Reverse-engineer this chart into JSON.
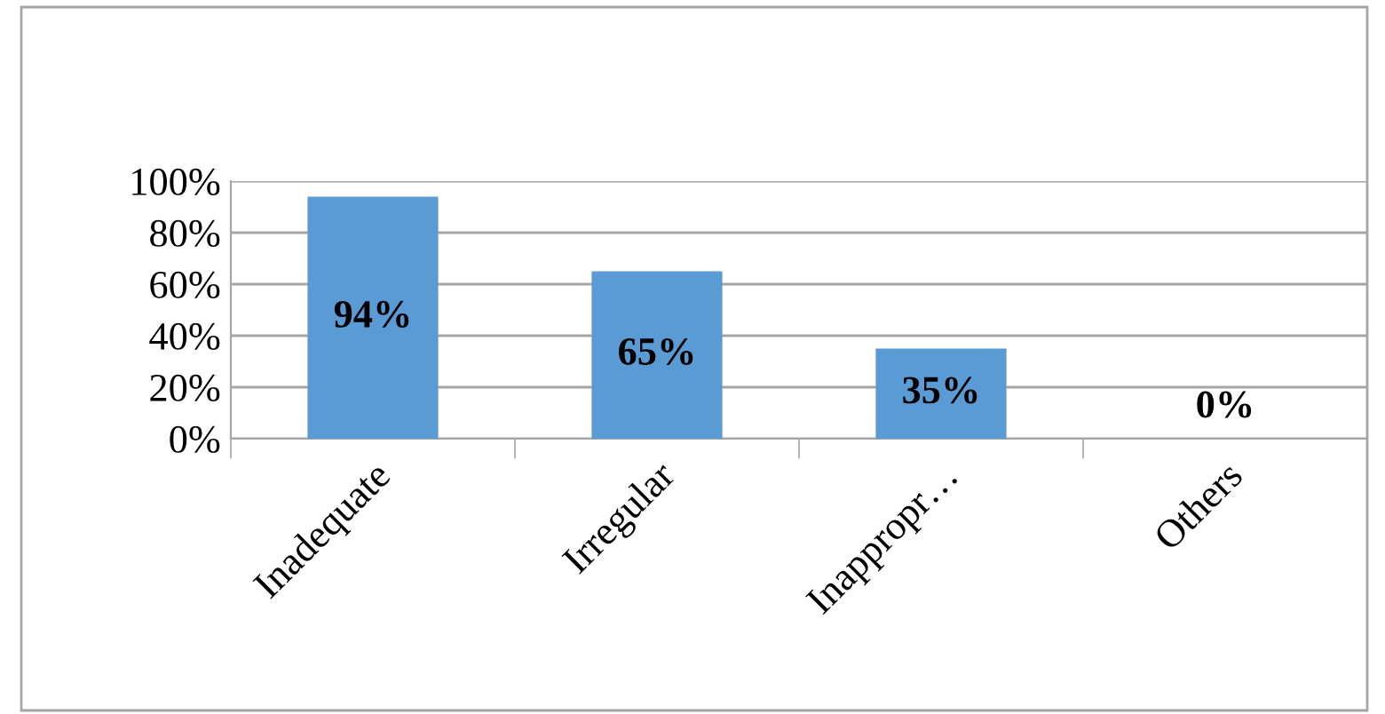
{
  "chart_data": {
    "type": "bar",
    "categories": [
      "Inadequate",
      "Irregular",
      "Inappropr…",
      "Others"
    ],
    "values": [
      94,
      65,
      35,
      0
    ],
    "color": "#5b9bd5",
    "value_labels": [
      "94%",
      "65%",
      "35%",
      "0%"
    ],
    "ylim": [
      0,
      100
    ],
    "yticks": [
      {
        "value": 0,
        "label": "0%"
      },
      {
        "value": 20,
        "label": "20%"
      },
      {
        "value": 40,
        "label": "40%"
      },
      {
        "value": 60,
        "label": "60%"
      },
      {
        "value": 80,
        "label": "80%"
      },
      {
        "value": 100,
        "label": "100%"
      }
    ],
    "grid": "y",
    "legend": false
  }
}
